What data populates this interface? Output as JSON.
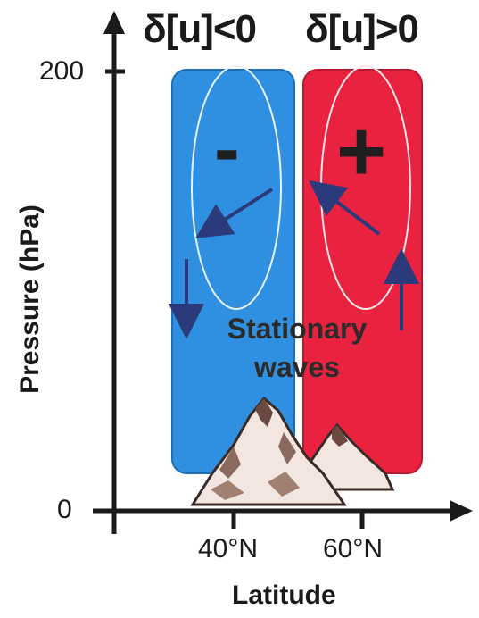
{
  "headers": {
    "left": "δ[u]<0",
    "right": "δ[u]>0"
  },
  "y_axis": {
    "title": "Pressure (hPa)",
    "ticks": [
      "200",
      "0"
    ]
  },
  "x_axis": {
    "title": "Latitude",
    "ticks": [
      "40°N",
      "60°N"
    ]
  },
  "regions": {
    "left": {
      "sign": "-",
      "color": "#2f8fe0"
    },
    "right": {
      "sign": "+",
      "color": "#e8223f"
    }
  },
  "annotation": {
    "line1": "Stationary",
    "line2": "waves"
  },
  "colors": {
    "axis": "#1a1a1a",
    "arrow": "#2a3a7a",
    "mountain_fill": "#f3e6e1",
    "mountain_shade": "#6a4a40"
  }
}
